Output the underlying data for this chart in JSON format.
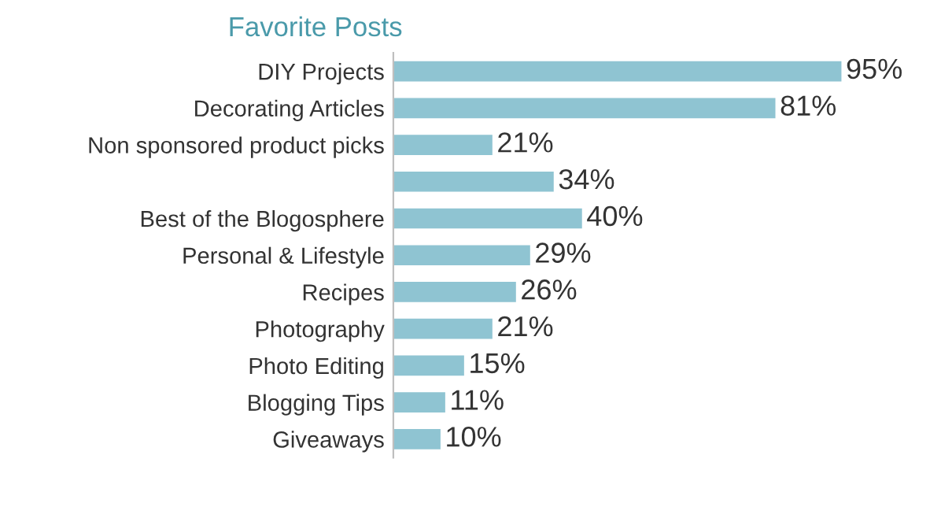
{
  "chart_data": {
    "type": "bar",
    "orientation": "horizontal",
    "title": "Favorite Posts",
    "categories": [
      "DIY Projects",
      "Decorating Articles",
      "Non sponsored product picks",
      null,
      "Best of the Blogosphere",
      "Personal & Lifestyle",
      "Recipes",
      "Photography",
      "Photo Editing",
      "Blogging Tips",
      "Giveaways"
    ],
    "values": [
      95,
      81,
      21,
      34,
      40,
      29,
      26,
      21,
      15,
      11,
      10
    ],
    "value_labels": [
      "95%",
      "81%",
      "21%",
      "34%",
      "40%",
      "29%",
      "26%",
      "21%",
      "15%",
      "11%",
      "10%"
    ],
    "color": "#8fc4d2",
    "grid": false,
    "legend": false
  }
}
